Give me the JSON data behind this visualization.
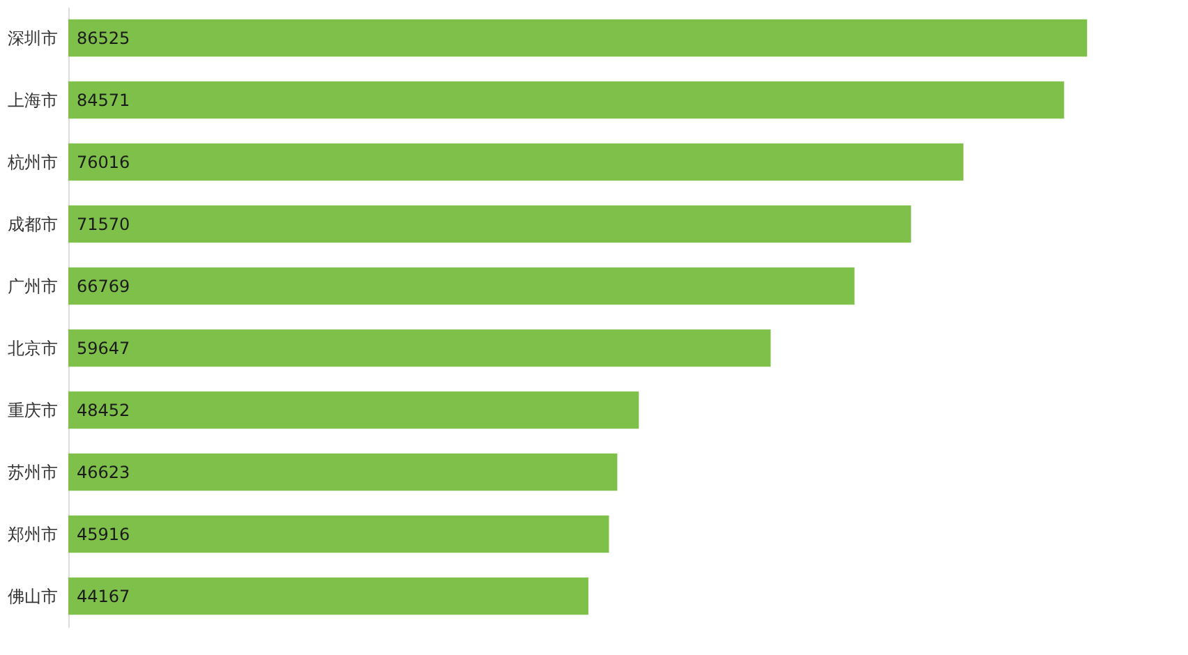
{
  "chart_data": {
    "type": "bar",
    "orientation": "horizontal",
    "data_labels": true,
    "categories": [
      "深圳市",
      "上海市",
      "杭州市",
      "成都市",
      "广州市",
      "北京市",
      "重庆市",
      "苏州市",
      "郑州市",
      "佛山市"
    ],
    "series": [
      {
        "color": "#7fc04a",
        "values": [
          86525,
          84571,
          76016,
          71570,
          66769,
          59647,
          48452,
          46623,
          45916,
          44167
        ]
      }
    ]
  }
}
